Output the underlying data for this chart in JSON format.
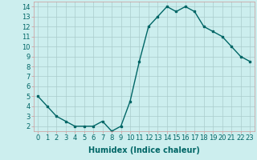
{
  "x": [
    0,
    1,
    2,
    3,
    4,
    5,
    6,
    7,
    8,
    9,
    10,
    11,
    12,
    13,
    14,
    15,
    16,
    17,
    18,
    19,
    20,
    21,
    22,
    23
  ],
  "y": [
    5.0,
    4.0,
    3.0,
    2.5,
    2.0,
    2.0,
    2.0,
    2.5,
    1.5,
    2.0,
    4.5,
    8.5,
    12.0,
    13.0,
    14.0,
    13.5,
    14.0,
    13.5,
    12.0,
    11.5,
    11.0,
    10.0,
    9.0,
    8.5
  ],
  "line_color": "#006666",
  "marker": "s",
  "marker_size": 2,
  "bg_color": "#cceeee",
  "grid_color": "#aacccc",
  "xlabel": "Humidex (Indice chaleur)",
  "xlabel_fontsize": 7,
  "ylabel_ticks": [
    2,
    3,
    4,
    5,
    6,
    7,
    8,
    9,
    10,
    11,
    12,
    13,
    14
  ],
  "xlim": [
    -0.5,
    23.5
  ],
  "ylim": [
    1.5,
    14.5
  ],
  "tick_fontsize": 6,
  "linewidth": 1.0
}
